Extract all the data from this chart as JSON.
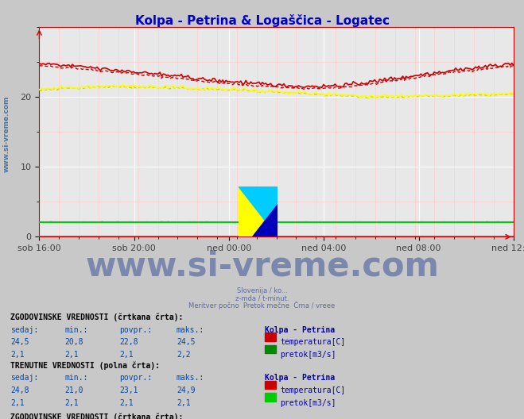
{
  "title": "Kolpa - Petrina & Logaščica - Logatec",
  "title_color": "#0000cc",
  "bg_color": "#c8c8c8",
  "plot_bg_color": "#e8e8e8",
  "grid_major_color": "#ffffff",
  "grid_minor_color": "#ffcccc",
  "x_tick_labels": [
    "sob 16:00",
    "sob 20:00",
    "ned 00:00",
    "ned 04:00",
    "ned 08:00",
    "ned 12:00"
  ],
  "ylim": [
    0,
    30
  ],
  "n_points": 288,
  "kolpa_temp_hist_color": "#cc0000",
  "kolpa_temp_curr_color": "#cc0000",
  "kolpa_flow_hist_color": "#008800",
  "kolpa_flow_curr_color": "#00cc00",
  "log_temp_hist_color": "#cccc00",
  "log_temp_curr_color": "#ffff00",
  "log_flow_hist_color": "#ff00ff",
  "log_flow_curr_color": "#ff00ff",
  "sidebar_text": "www.si-vreme.com",
  "sidebar_color": "#4477aa",
  "watermark_text": "www.si-vreme.com",
  "watermark_color": "#1a3a8a",
  "watermark_alpha": 0.45,
  "sub1": "Slovenija / ko...",
  "sub2": "z-mda / t-minut.",
  "sub3": "Meritver počno  Pretok mečne  Črna / vreee",
  "stat_label_color": "#0044aa",
  "stat_value_color": "#0044aa",
  "stat_bold_color": "#000000",
  "stat_header_color": "#0000aa"
}
